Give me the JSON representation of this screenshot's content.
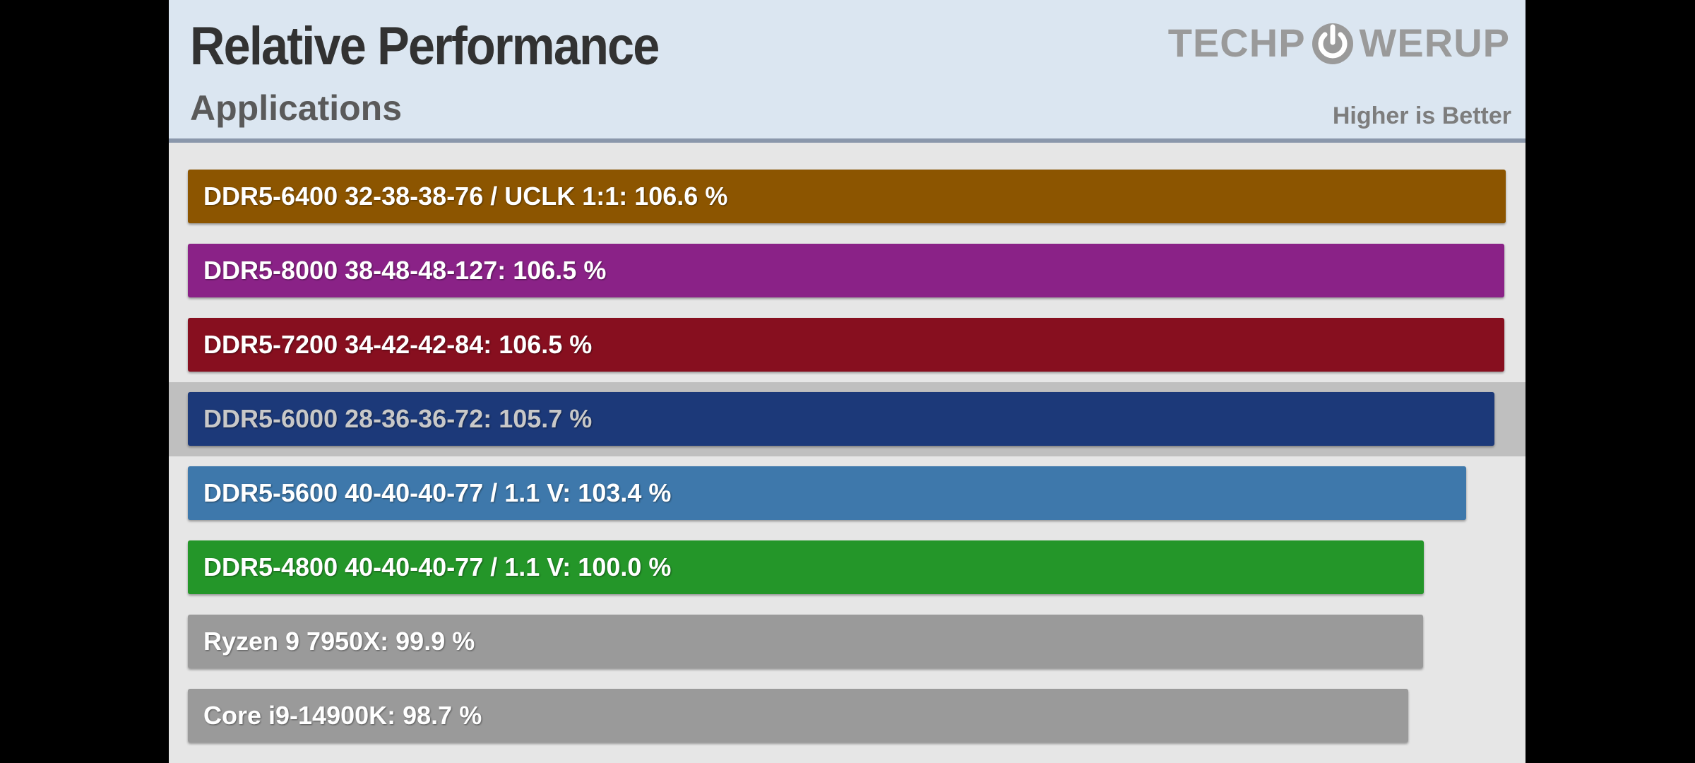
{
  "header": {
    "title": "Relative Performance",
    "subtitle": "Applications",
    "logo_text_left": "TECHP",
    "logo_text_right": "WERUP",
    "logo_icon": "power-icon",
    "note": "Higher is Better"
  },
  "colors": {
    "panel_bg": "#e6e6e6",
    "header_bg": "#dbe6f1",
    "highlight_row": "#bfbfbf"
  },
  "chart_data": {
    "type": "bar",
    "orientation": "horizontal",
    "unit": "%",
    "categories": [
      "DDR5-6400 32-38-38-76 / UCLK 1:1",
      "DDR5-8000 38-48-48-127",
      "DDR5-7200 34-42-42-84",
      "DDR5-6000 28-36-36-72",
      "DDR5-5600 40-40-40-77 / 1.1 V",
      "DDR5-4800 40-40-40-77 / 1.1 V",
      "Ryzen 9 7950X",
      "Core i9-14900K"
    ],
    "values": [
      106.6,
      106.5,
      106.5,
      105.7,
      103.4,
      100.0,
      99.9,
      98.7
    ],
    "labels": [
      "DDR5-6400 32-38-38-76 / UCLK 1:1: 106.6 %",
      "DDR5-8000 38-48-48-127: 106.5 %",
      "DDR5-7200 34-42-42-84: 106.5 %",
      "DDR5-6000 28-36-36-72: 105.7 %",
      "DDR5-5600 40-40-40-77 / 1.1 V: 103.4 %",
      "DDR5-4800 40-40-40-77 / 1.1 V: 100.0 %",
      "Ryzen 9 7950X: 99.9 %",
      "Core i9-14900K: 98.7 %"
    ],
    "colors": [
      "#8c5500",
      "#8a2287",
      "#870f1f",
      "#1c3979",
      "#3e78ab",
      "#249629",
      "#9a9a9a",
      "#9a9a9a"
    ],
    "highlighted_index": 3,
    "xlim": [
      0,
      106.6
    ],
    "grid": false,
    "legend": "none"
  }
}
